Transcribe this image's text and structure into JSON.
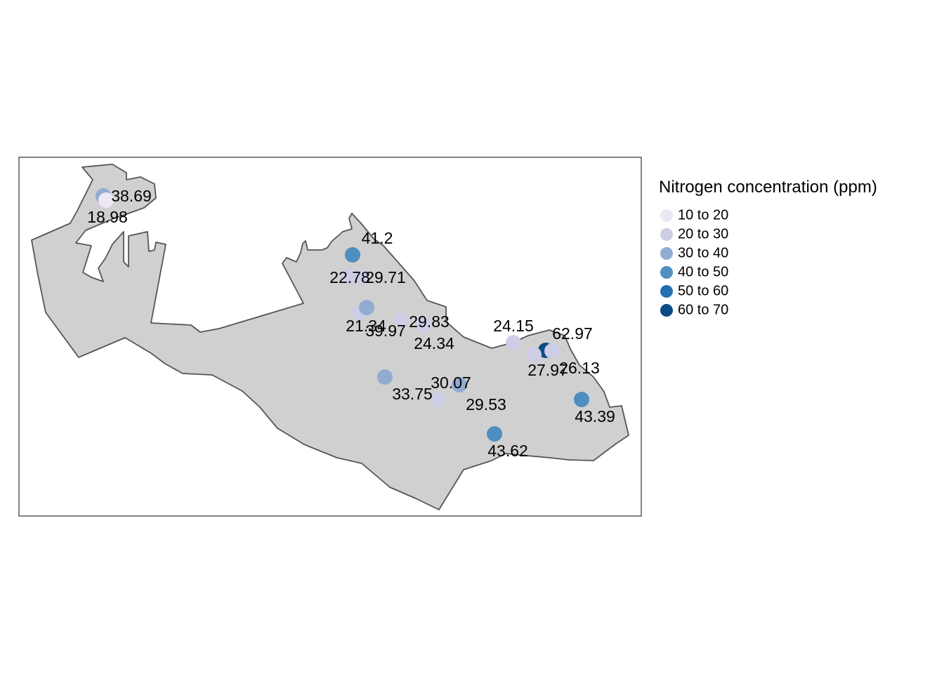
{
  "legend": {
    "title": "Nitrogen concentration (ppm)",
    "classes": [
      {
        "label": "10 to 20",
        "color": "#ece7f2"
      },
      {
        "label": "20 to 30",
        "color": "#cdcde5"
      },
      {
        "label": "30 to 40",
        "color": "#92abd1"
      },
      {
        "label": "40 to 50",
        "color": "#4f8ebf"
      },
      {
        "label": "50 to 60",
        "color": "#2370b0"
      },
      {
        "label": "60 to 70",
        "color": "#0b4b84"
      }
    ]
  },
  "colors": {
    "land_fill": "#d0d0d0",
    "land_stroke": "#555555",
    "frame_stroke": "#333333"
  },
  "points": [
    {
      "label": "38.69",
      "value": 38.69
    },
    {
      "label": "18.98",
      "value": 18.98
    },
    {
      "label": "41.2",
      "value": 41.2
    },
    {
      "label": "22.78",
      "value": 22.78
    },
    {
      "label": "29.71",
      "value": 29.71
    },
    {
      "label": "21.34",
      "value": 21.34
    },
    {
      "label": "39.97",
      "value": 39.97
    },
    {
      "label": "29.83",
      "value": 29.83
    },
    {
      "label": "24.34",
      "value": 24.34
    },
    {
      "label": "24.15",
      "value": 24.15
    },
    {
      "label": "62.97",
      "value": 62.97
    },
    {
      "label": "27.97",
      "value": 27.97
    },
    {
      "label": "26.13",
      "value": 26.13
    },
    {
      "label": "33.75",
      "value": 33.75
    },
    {
      "label": "30.07",
      "value": 30.07
    },
    {
      "label": "29.53",
      "value": 29.53
    },
    {
      "label": "43.39",
      "value": 43.39
    },
    {
      "label": "43.62",
      "value": 43.62
    }
  ]
}
